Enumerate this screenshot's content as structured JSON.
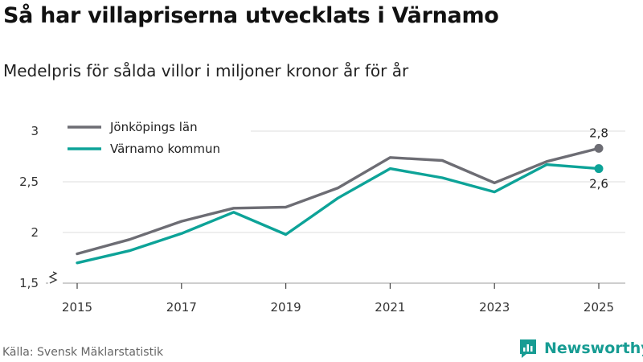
{
  "title": "Så har villapriserna utvecklats i Värnamo",
  "subtitle": "Medelpris för sålda villor i miljoner kronor år för år",
  "source": "Källa: Svensk Mäklarstatistik",
  "brand": {
    "name": "Newsworthy",
    "icon": "newsworthy-logo-icon",
    "color": "#179c93"
  },
  "chart_data": {
    "type": "line",
    "x": [
      2015,
      2016,
      2017,
      2018,
      2019,
      2020,
      2021,
      2022,
      2023,
      2024,
      2025
    ],
    "xticks": [
      2015,
      2017,
      2019,
      2021,
      2023,
      2025
    ],
    "xtick_labels": [
      "2015",
      "2017",
      "2019",
      "2021",
      "2023",
      "2025"
    ],
    "yticks": [
      1.5,
      2,
      2.5,
      3
    ],
    "ytick_labels": [
      "1,5",
      "2",
      "2,5",
      "3"
    ],
    "ylim": [
      1.5,
      3
    ],
    "grid": true,
    "legend_position": "top-left",
    "series": [
      {
        "name": "Jönköpings län",
        "color": "#6d6d74",
        "values": [
          1.79,
          1.93,
          2.11,
          2.24,
          2.25,
          2.44,
          2.74,
          2.71,
          2.49,
          2.7,
          2.83
        ],
        "end_label": "2,8"
      },
      {
        "name": "Värnamo kommun",
        "color": "#0da398",
        "values": [
          1.7,
          1.82,
          1.99,
          2.2,
          1.98,
          2.34,
          2.63,
          2.54,
          2.4,
          2.67,
          2.63
        ],
        "end_label": "2,6"
      }
    ]
  }
}
